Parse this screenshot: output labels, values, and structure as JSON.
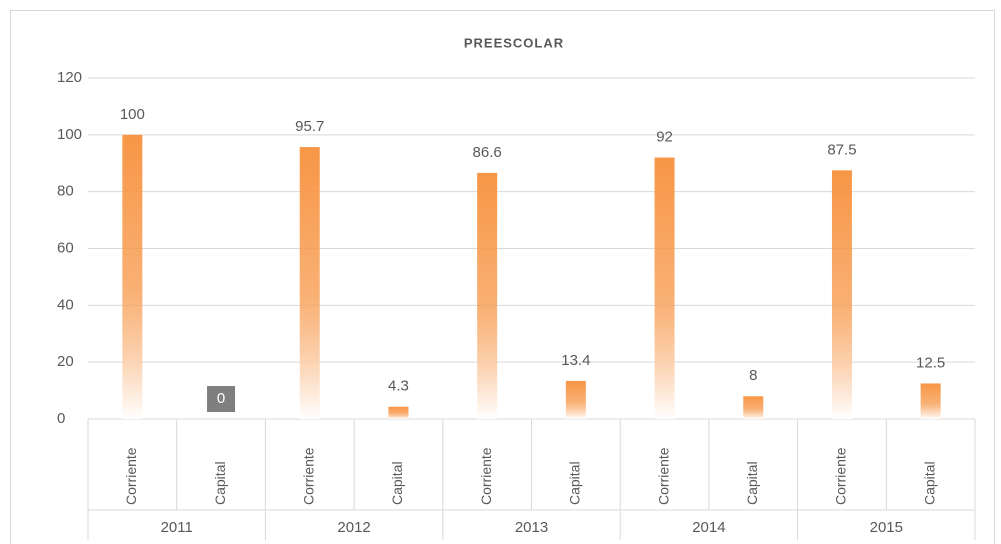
{
  "chart_data": {
    "type": "bar",
    "title": "PREESCOLAR",
    "groups": [
      "2011",
      "2012",
      "2013",
      "2014",
      "2015"
    ],
    "categories": [
      "Corriente",
      "Capital",
      "Corriente",
      "Capital",
      "Corriente",
      "Capital",
      "Corriente",
      "Capital",
      "Corriente",
      "Capital"
    ],
    "values": [
      100,
      0,
      95.7,
      4.3,
      86.6,
      13.4,
      92,
      8,
      87.5,
      12.5
    ],
    "color": "#f79646",
    "ylim": [
      0,
      120
    ],
    "yticks": [
      0,
      20,
      40,
      60,
      80,
      100,
      120
    ],
    "grid": true
  }
}
